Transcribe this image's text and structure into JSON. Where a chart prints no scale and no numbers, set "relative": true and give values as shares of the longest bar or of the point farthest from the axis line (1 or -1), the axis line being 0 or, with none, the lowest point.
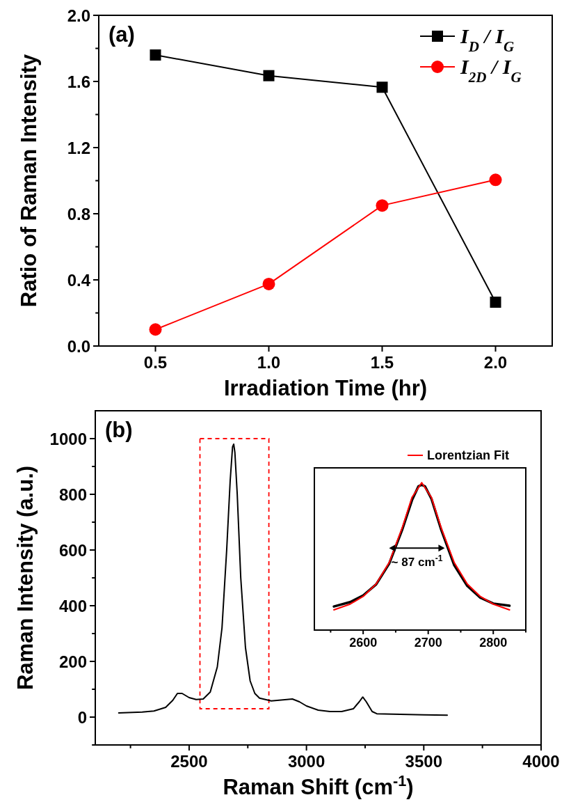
{
  "chart_data": [
    {
      "type": "line",
      "title": "(a)",
      "xlabel": "Irradiation Time (hr)",
      "ylabel": "Ratio of Raman Intensity",
      "x": [
        0.5,
        1.0,
        1.5,
        2.0
      ],
      "xlim": [
        0.25,
        2.25
      ],
      "xticks": [
        0.5,
        {
          "value": 1.0,
          "label": "1.0"
        },
        1.5,
        {
          "value": 2.0,
          "label": "2.0"
        }
      ],
      "ylim": [
        0,
        2.0
      ],
      "yticks": [
        {
          "value": 0,
          "label": "0.0"
        },
        {
          "value": 0.2,
          "label": null
        },
        0.4,
        {
          "value": 0.6,
          "label": null
        },
        0.8,
        {
          "value": 1.0,
          "label": null
        },
        1.2,
        {
          "value": 1.4,
          "label": null
        },
        1.6,
        {
          "value": 1.8,
          "label": null
        },
        {
          "value": 2.0,
          "label": "2.0"
        }
      ],
      "legend": "top right",
      "grid": false,
      "series": [
        {
          "name": "I$_{D}$ / I$_{G}$",
          "color": "#000000",
          "marker": "square",
          "values": [
            1.76,
            1.635,
            1.565,
            0.265
          ]
        },
        {
          "name": "I$_{2D}$ / I$_{G}$",
          "color": "#ff0000",
          "marker": "circle",
          "values": [
            0.1,
            0.375,
            0.85,
            1.005
          ]
        }
      ]
    },
    {
      "type": "line",
      "title": "(b)",
      "xlabel": "Raman Shift (cm$^{-1}$)",
      "ylabel": "Raman Intensity (a.u.)",
      "xlim": [
        2100,
        4000
      ],
      "xticks": [
        {
          "value": 2250,
          "label": null
        },
        2500,
        {
          "value": 2750,
          "label": null
        },
        3000,
        {
          "value": 3250,
          "label": null
        },
        3500,
        {
          "value": 3750,
          "label": null
        },
        4000
      ],
      "ylim": [
        -100,
        1100
      ],
      "yticks": [
        {
          "value": -100,
          "label": null
        },
        0,
        {
          "value": 100,
          "label": null
        },
        200,
        {
          "value": 300,
          "label": null
        },
        400,
        {
          "value": 500,
          "label": null
        },
        600,
        {
          "value": 700,
          "label": null
        },
        800,
        {
          "value": 900,
          "label": null
        },
        1000
      ],
      "grid": false,
      "legend": false,
      "series": [
        {
          "color": "#000000",
          "x": [
            2200,
            2300,
            2350,
            2400,
            2430,
            2450,
            2470,
            2500,
            2530,
            2560,
            2590,
            2620,
            2640,
            2660,
            2675,
            2685,
            2690,
            2695,
            2705,
            2720,
            2740,
            2760,
            2780,
            2800,
            2850,
            2900,
            2940,
            2970,
            3000,
            3050,
            3100,
            3150,
            3200,
            3225,
            3240,
            3255,
            3280,
            3300,
            3400,
            3500,
            3600
          ],
          "values": [
            15,
            18,
            22,
            35,
            60,
            85,
            85,
            70,
            63,
            65,
            90,
            180,
            320,
            600,
            850,
            970,
            980,
            950,
            800,
            500,
            250,
            130,
            85,
            68,
            58,
            62,
            65,
            55,
            40,
            25,
            20,
            20,
            30,
            55,
            72,
            55,
            20,
            12,
            10,
            8,
            7
          ]
        }
      ]
    },
    {
      "type": "line",
      "relative": true,
      "xlim": [
        2525,
        2850
      ],
      "xticks": [
        {
          "value": 2550,
          "label": null
        },
        2600,
        {
          "value": 2650,
          "label": null
        },
        2700,
        {
          "value": 2750,
          "label": null
        },
        2800,
        {
          "value": 2850,
          "label": null
        }
      ],
      "tick_labels": "x",
      "legend": "top right",
      "grid": false,
      "annotations": [
        "~ 87 cm$^{-1}$"
      ],
      "series": [
        {
          "color": "#000000",
          "x": [
            2555,
            2580,
            2600,
            2620,
            2640,
            2660,
            2675,
            2685,
            2690,
            2695,
            2705,
            2720,
            2740,
            2760,
            2780,
            2800,
            2825
          ],
          "values": [
            0.16,
            0.19,
            0.235,
            0.31,
            0.45,
            0.68,
            0.88,
            0.975,
            0.985,
            0.975,
            0.89,
            0.68,
            0.44,
            0.3,
            0.22,
            0.18,
            0.165
          ]
        },
        {
          "name": "Lorentzian Fit",
          "color": "#ff0000",
          "x": [
            2555,
            2580,
            2600,
            2620,
            2640,
            2660,
            2675,
            2690,
            2705,
            2720,
            2740,
            2760,
            2780,
            2800,
            2825
          ],
          "values": [
            0.137,
            0.176,
            0.228,
            0.313,
            0.458,
            0.693,
            0.899,
            1,
            0.899,
            0.693,
            0.458,
            0.313,
            0.228,
            0.176,
            0.137
          ]
        }
      ]
    }
  ]
}
